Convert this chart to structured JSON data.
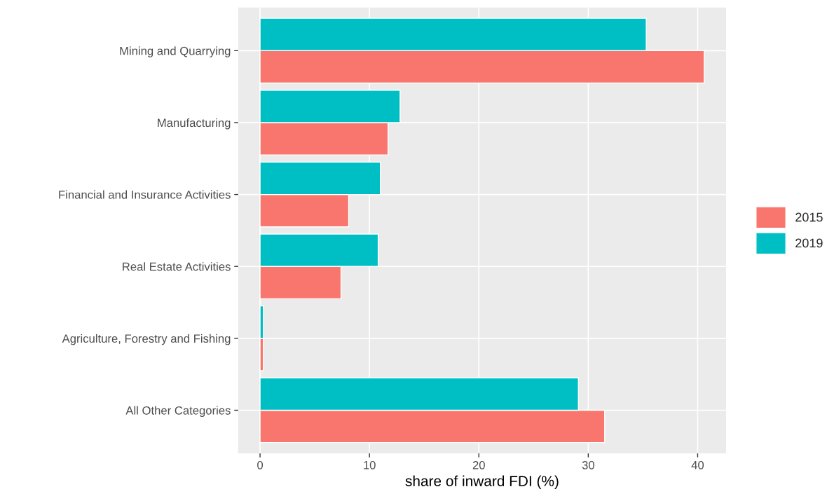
{
  "chart_data": {
    "type": "bar",
    "orientation": "horizontal",
    "xlabel": "share of inward FDI (%)",
    "categories": [
      "Mining and Quarrying",
      "Manufacturing",
      "Financial and Insurance Activities",
      "Real Estate Activities",
      "Agriculture, Forestry and Fishing",
      "All Other Categories"
    ],
    "series": [
      {
        "name": "2015",
        "color": "#f8766d",
        "values": [
          40.6,
          11.7,
          8.1,
          7.4,
          0.3,
          31.5
        ]
      },
      {
        "name": "2019",
        "color": "#00bfc4",
        "values": [
          35.3,
          12.8,
          11.0,
          10.8,
          0.3,
          29.1
        ]
      }
    ],
    "xlim": [
      -2.0,
      42.6
    ],
    "xticks": [
      0,
      10,
      20,
      30,
      40
    ],
    "grid": true,
    "legend": "right"
  }
}
